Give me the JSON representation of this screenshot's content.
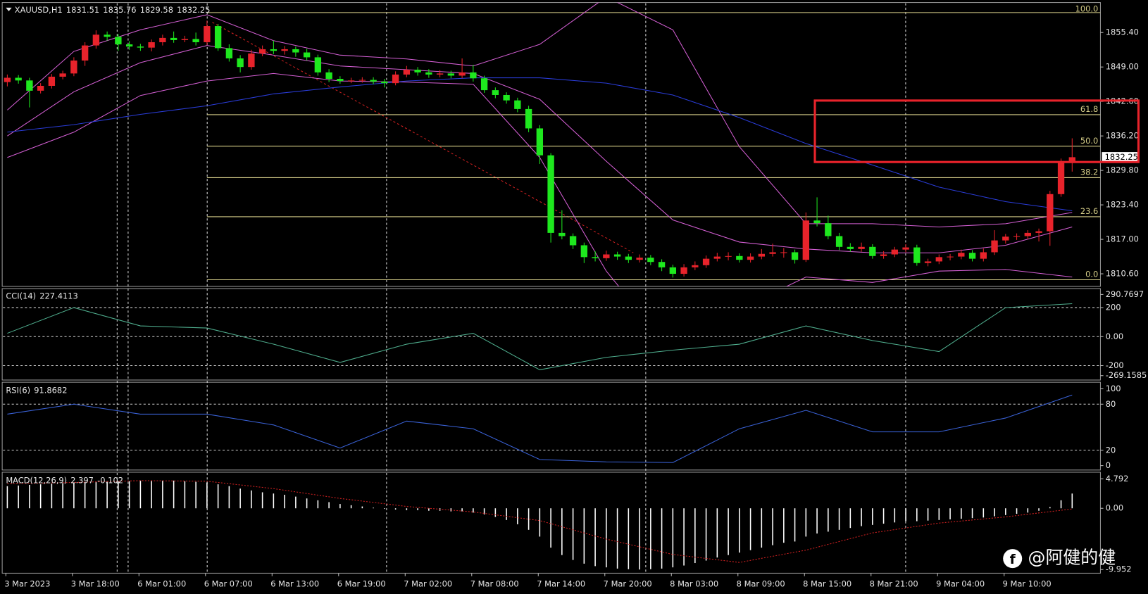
{
  "chart_data": {
    "type": "candlestick",
    "symbol": "XAUUSD,H1",
    "up_color": "#e8232b",
    "down_color": "#1ee81e",
    "ylim": [
      1808.4,
      1860.7
    ],
    "yticks": [
      {
        "value": 1855.4,
        "label": "1855.40"
      },
      {
        "value": 1849.0,
        "label": "1849.00"
      },
      {
        "value": 1842.6,
        "label": "1842.60"
      },
      {
        "value": 1836.2,
        "label": "1836.20"
      },
      {
        "value": 1829.8,
        "label": "1829.80"
      },
      {
        "value": 1823.4,
        "label": "1823.40"
      },
      {
        "value": 1817.0,
        "label": "1817.00"
      },
      {
        "value": 1810.6,
        "label": "1810.60"
      }
    ],
    "x_labels": [
      "3 Mar 2023",
      "3 Mar 18:00",
      "6 Mar 01:00",
      "6 Mar 07:00",
      "6 Mar 13:00",
      "6 Mar 19:00",
      "7 Mar 02:00",
      "7 Mar 08:00",
      "7 Mar 14:00",
      "7 Mar 20:00",
      "8 Mar 03:00",
      "8 Mar 09:00",
      "8 Mar 15:00",
      "8 Mar 21:00",
      "9 Mar 04:00",
      "9 Mar 10:00"
    ],
    "ohlc": [
      [
        1846.2,
        1847.6,
        1845.4,
        1847.0
      ],
      [
        1847.0,
        1847.5,
        1845.9,
        1846.5
      ],
      [
        1846.5,
        1847.0,
        1841.5,
        1844.6
      ],
      [
        1844.6,
        1846.0,
        1844.1,
        1845.5
      ],
      [
        1845.5,
        1847.7,
        1845.0,
        1847.2
      ],
      [
        1847.2,
        1848.3,
        1846.7,
        1847.8
      ],
      [
        1847.8,
        1850.8,
        1847.3,
        1850.2
      ],
      [
        1850.2,
        1853.6,
        1849.2,
        1853.0
      ],
      [
        1853.0,
        1855.8,
        1852.4,
        1855.0
      ],
      [
        1855.0,
        1855.6,
        1853.9,
        1854.6
      ],
      [
        1854.6,
        1855.1,
        1852.0,
        1853.2
      ],
      [
        1853.2,
        1853.8,
        1852.2,
        1852.8
      ],
      [
        1852.8,
        1853.3,
        1852.0,
        1852.6
      ],
      [
        1852.6,
        1854.1,
        1851.9,
        1853.6
      ],
      [
        1853.6,
        1855.0,
        1853.0,
        1854.4
      ],
      [
        1854.4,
        1855.6,
        1853.5,
        1854.0
      ],
      [
        1854.0,
        1854.8,
        1853.6,
        1854.2
      ],
      [
        1854.2,
        1855.4,
        1853.0,
        1853.6
      ],
      [
        1853.6,
        1857.6,
        1853.1,
        1856.6
      ],
      [
        1856.6,
        1857.0,
        1852.0,
        1852.5
      ],
      [
        1852.5,
        1853.2,
        1850.0,
        1850.6
      ],
      [
        1850.6,
        1851.2,
        1848.0,
        1849.0
      ],
      [
        1849.0,
        1852.2,
        1848.5,
        1851.5
      ],
      [
        1851.5,
        1853.0,
        1851.0,
        1852.3
      ],
      [
        1852.3,
        1853.9,
        1851.4,
        1852.0
      ],
      [
        1852.0,
        1852.9,
        1851.3,
        1852.3
      ],
      [
        1852.3,
        1852.8,
        1850.9,
        1851.7
      ],
      [
        1851.7,
        1852.4,
        1850.2,
        1850.8
      ],
      [
        1850.8,
        1851.3,
        1847.4,
        1848.0
      ],
      [
        1848.0,
        1848.6,
        1846.2,
        1846.8
      ],
      [
        1846.8,
        1847.3,
        1845.9,
        1846.4
      ],
      [
        1846.4,
        1847.0,
        1846.0,
        1846.5
      ],
      [
        1846.5,
        1847.1,
        1846.1,
        1846.6
      ],
      [
        1846.6,
        1847.1,
        1845.8,
        1846.3
      ],
      [
        1846.3,
        1846.8,
        1845.2,
        1846.0
      ],
      [
        1846.0,
        1848.2,
        1845.6,
        1847.6
      ],
      [
        1847.6,
        1849.2,
        1847.1,
        1848.5
      ],
      [
        1848.5,
        1849.0,
        1847.4,
        1848.0
      ],
      [
        1848.0,
        1848.6,
        1847.0,
        1847.6
      ],
      [
        1847.6,
        1848.4,
        1847.1,
        1847.8
      ],
      [
        1847.8,
        1848.3,
        1846.9,
        1847.4
      ],
      [
        1847.4,
        1850.6,
        1846.9,
        1848.0
      ],
      [
        1848.0,
        1849.4,
        1846.3,
        1846.9
      ],
      [
        1846.9,
        1847.4,
        1844.2,
        1844.7
      ],
      [
        1844.7,
        1845.2,
        1843.2,
        1843.8
      ],
      [
        1843.8,
        1844.3,
        1842.2,
        1842.8
      ],
      [
        1842.8,
        1843.3,
        1840.6,
        1841.2
      ],
      [
        1841.2,
        1841.8,
        1836.9,
        1837.6
      ],
      [
        1837.6,
        1838.2,
        1831.0,
        1832.6
      ],
      [
        1832.6,
        1833.0,
        1816.4,
        1818.2
      ],
      [
        1818.2,
        1822.4,
        1817.0,
        1817.6
      ],
      [
        1817.6,
        1818.1,
        1815.2,
        1815.9
      ],
      [
        1815.9,
        1816.4,
        1812.6,
        1813.7
      ],
      [
        1813.7,
        1814.8,
        1812.9,
        1813.5
      ],
      [
        1813.5,
        1814.9,
        1813.0,
        1814.2
      ],
      [
        1814.2,
        1814.7,
        1813.2,
        1813.8
      ],
      [
        1813.8,
        1814.3,
        1812.6,
        1813.2
      ],
      [
        1813.2,
        1814.2,
        1812.7,
        1813.6
      ],
      [
        1813.6,
        1814.1,
        1812.2,
        1812.8
      ],
      [
        1812.8,
        1813.3,
        1811.1,
        1811.8
      ],
      [
        1811.8,
        1812.3,
        1809.9,
        1810.6
      ],
      [
        1810.6,
        1812.4,
        1810.1,
        1811.8
      ],
      [
        1811.8,
        1812.9,
        1811.3,
        1812.2
      ],
      [
        1812.2,
        1814.0,
        1811.7,
        1813.4
      ],
      [
        1813.4,
        1814.5,
        1812.9,
        1813.8
      ],
      [
        1813.8,
        1814.6,
        1813.1,
        1813.9
      ],
      [
        1813.9,
        1814.4,
        1812.7,
        1813.2
      ],
      [
        1813.2,
        1814.4,
        1812.7,
        1813.8
      ],
      [
        1813.8,
        1815.2,
        1813.3,
        1814.3
      ],
      [
        1814.3,
        1816.2,
        1813.8,
        1814.6
      ],
      [
        1814.6,
        1815.4,
        1813.6,
        1814.6
      ],
      [
        1814.6,
        1815.1,
        1812.5,
        1813.2
      ],
      [
        1813.2,
        1822.0,
        1812.8,
        1820.5
      ],
      [
        1820.5,
        1824.8,
        1819.4,
        1820.0
      ],
      [
        1820.0,
        1821.4,
        1817.0,
        1817.6
      ],
      [
        1817.6,
        1818.2,
        1815.0,
        1815.6
      ],
      [
        1815.6,
        1816.3,
        1814.7,
        1815.2
      ],
      [
        1815.2,
        1816.4,
        1814.7,
        1815.6
      ],
      [
        1815.6,
        1816.1,
        1813.4,
        1813.9
      ],
      [
        1813.9,
        1814.8,
        1813.4,
        1814.2
      ],
      [
        1814.2,
        1815.6,
        1813.7,
        1815.1
      ],
      [
        1815.1,
        1816.1,
        1814.6,
        1815.5
      ],
      [
        1815.5,
        1816.0,
        1812.1,
        1812.6
      ],
      [
        1812.6,
        1813.4,
        1812.0,
        1812.9
      ],
      [
        1812.9,
        1814.2,
        1812.4,
        1813.7
      ],
      [
        1813.7,
        1814.3,
        1813.1,
        1813.8
      ],
      [
        1813.8,
        1815.1,
        1813.3,
        1814.5
      ],
      [
        1814.5,
        1815.0,
        1812.9,
        1813.4
      ],
      [
        1813.4,
        1815.3,
        1812.9,
        1814.6
      ],
      [
        1814.6,
        1818.7,
        1814.1,
        1816.8
      ],
      [
        1816.8,
        1818.0,
        1816.2,
        1817.5
      ],
      [
        1817.5,
        1818.1,
        1816.9,
        1817.6
      ],
      [
        1817.6,
        1818.7,
        1817.0,
        1818.2
      ],
      [
        1818.2,
        1819.0,
        1816.6,
        1818.5
      ],
      [
        1818.5,
        1826.0,
        1815.8,
        1825.4
      ],
      [
        1825.4,
        1832.0,
        1824.9,
        1831.51
      ],
      [
        1831.51,
        1835.76,
        1829.58,
        1832.25
      ]
    ],
    "bollinger": {
      "color": "#d45fd4",
      "upper": [
        1841.0,
        1851.9,
        1855.9,
        1858.7,
        1853.9,
        1851.2,
        1850.5,
        1849.2,
        1853.2,
        1862.0,
        1855.9,
        1834.2,
        1819.9,
        1819.9,
        1819.3,
        1819.9,
        1822.0
      ],
      "middle": [
        1836.2,
        1844.4,
        1849.8,
        1853.0,
        1851.2,
        1849.2,
        1848.5,
        1847.8,
        1843.0,
        1831.5,
        1820.6,
        1816.5,
        1815.2,
        1814.5,
        1814.5,
        1815.9,
        1819.3
      ],
      "lower": [
        1832.2,
        1836.9,
        1843.7,
        1846.4,
        1847.8,
        1846.4,
        1846.2,
        1845.8,
        1832.2,
        1811.1,
        1796.0,
        1804.0,
        1810.0,
        1809.0,
        1811.1,
        1811.4,
        1810.0
      ]
    },
    "ma": {
      "color": "#2a3cd8",
      "values": [
        1836.9,
        1838.3,
        1840.2,
        1841.8,
        1844.0,
        1845.3,
        1846.4,
        1847.0,
        1847.0,
        1846.0,
        1843.8,
        1839.6,
        1834.8,
        1830.8,
        1826.7,
        1824.0,
        1822.3
      ]
    },
    "fib_color": "#d8d08a",
    "fibonacci": [
      {
        "value": 1859.1,
        "label": "100.0"
      },
      {
        "value": 1840.15,
        "label": "61.8"
      },
      {
        "value": 1834.3,
        "label": "50.0"
      },
      {
        "value": 1828.45,
        "label": "38.2"
      },
      {
        "value": 1821.2,
        "label": "23.6"
      },
      {
        "value": 1809.5,
        "label": "0.0"
      }
    ],
    "panels": [
      {
        "type": "line",
        "title": "CCI(14)",
        "color": "#4fae8e",
        "level_lines": true,
        "values": [
          23,
          200,
          74,
          59,
          -52,
          -178,
          -52,
          23,
          -229,
          -143,
          -93,
          -52,
          74,
          -27,
          -103,
          200,
          227.4113
        ],
        "ylim": [
          -269.1585,
          290.7697
        ],
        "yticks": [
          290.7697,
          200,
          {
            "value": 0,
            "label": "0.00"
          },
          -200,
          -269.1585
        ]
      },
      {
        "type": "line",
        "title": "RSI(6)",
        "color": "#3a62d8",
        "level_lines": true,
        "values": [
          67,
          80,
          67,
          67,
          53,
          23,
          58,
          48,
          8,
          5,
          4,
          48,
          72,
          44,
          44,
          62,
          91.8682
        ],
        "ylim": [
          0,
          100
        ],
        "yticks": [
          100,
          80,
          20,
          0
        ]
      },
      {
        "type": "macd",
        "title": "MACD(12,26,9)",
        "color": "#ffffff",
        "signal_color": "#d02020",
        "level_lines": false,
        "histogram": [
          3.6,
          3.7,
          3.8,
          3.9,
          4.0,
          4.1,
          4.2,
          4.3,
          4.3,
          4.4,
          4.4,
          4.4,
          4.5,
          4.5,
          4.5,
          4.5,
          4.4,
          4.3,
          4.2,
          3.9,
          3.6,
          3.2,
          2.9,
          2.6,
          2.4,
          2.2,
          1.9,
          1.6,
          1.3,
          1.0,
          0.7,
          0.5,
          0.3,
          0.1,
          -0.1,
          -0.2,
          -0.3,
          -0.3,
          -0.4,
          -0.4,
          -0.5,
          -0.5,
          -0.7,
          -1.0,
          -1.4,
          -1.9,
          -2.6,
          -3.5,
          -4.6,
          -6.4,
          -7.6,
          -8.4,
          -9.0,
          -9.4,
          -9.6,
          -9.8,
          -9.9,
          -9.95,
          -9.9,
          -9.8,
          -9.6,
          -9.3,
          -8.9,
          -8.5,
          -8.0,
          -7.6,
          -7.2,
          -6.8,
          -6.4,
          -6.0,
          -5.6,
          -5.4,
          -4.6,
          -4.1,
          -3.8,
          -3.5,
          -3.2,
          -2.9,
          -2.7,
          -2.5,
          -2.3,
          -2.1,
          -2.1,
          -2.0,
          -1.9,
          -1.8,
          -1.7,
          -1.6,
          -1.5,
          -1.3,
          -1.1,
          -0.9,
          -0.7,
          -0.4,
          0.2,
          1.3,
          2.397
        ],
        "signal": [
          4.0,
          4.2,
          4.5,
          4.4,
          3.2,
          1.6,
          0.3,
          -0.6,
          -2.0,
          -5.0,
          -7.5,
          -8.8,
          -6.8,
          -4.0,
          -2.4,
          -1.4,
          -0.102
        ],
        "ylim": [
          -9.952,
          4.792
        ],
        "yticks": [
          4.792,
          {
            "value": 0,
            "label": "0.00"
          },
          -9.952
        ]
      }
    ]
  },
  "watermark": "@阿健的健"
}
